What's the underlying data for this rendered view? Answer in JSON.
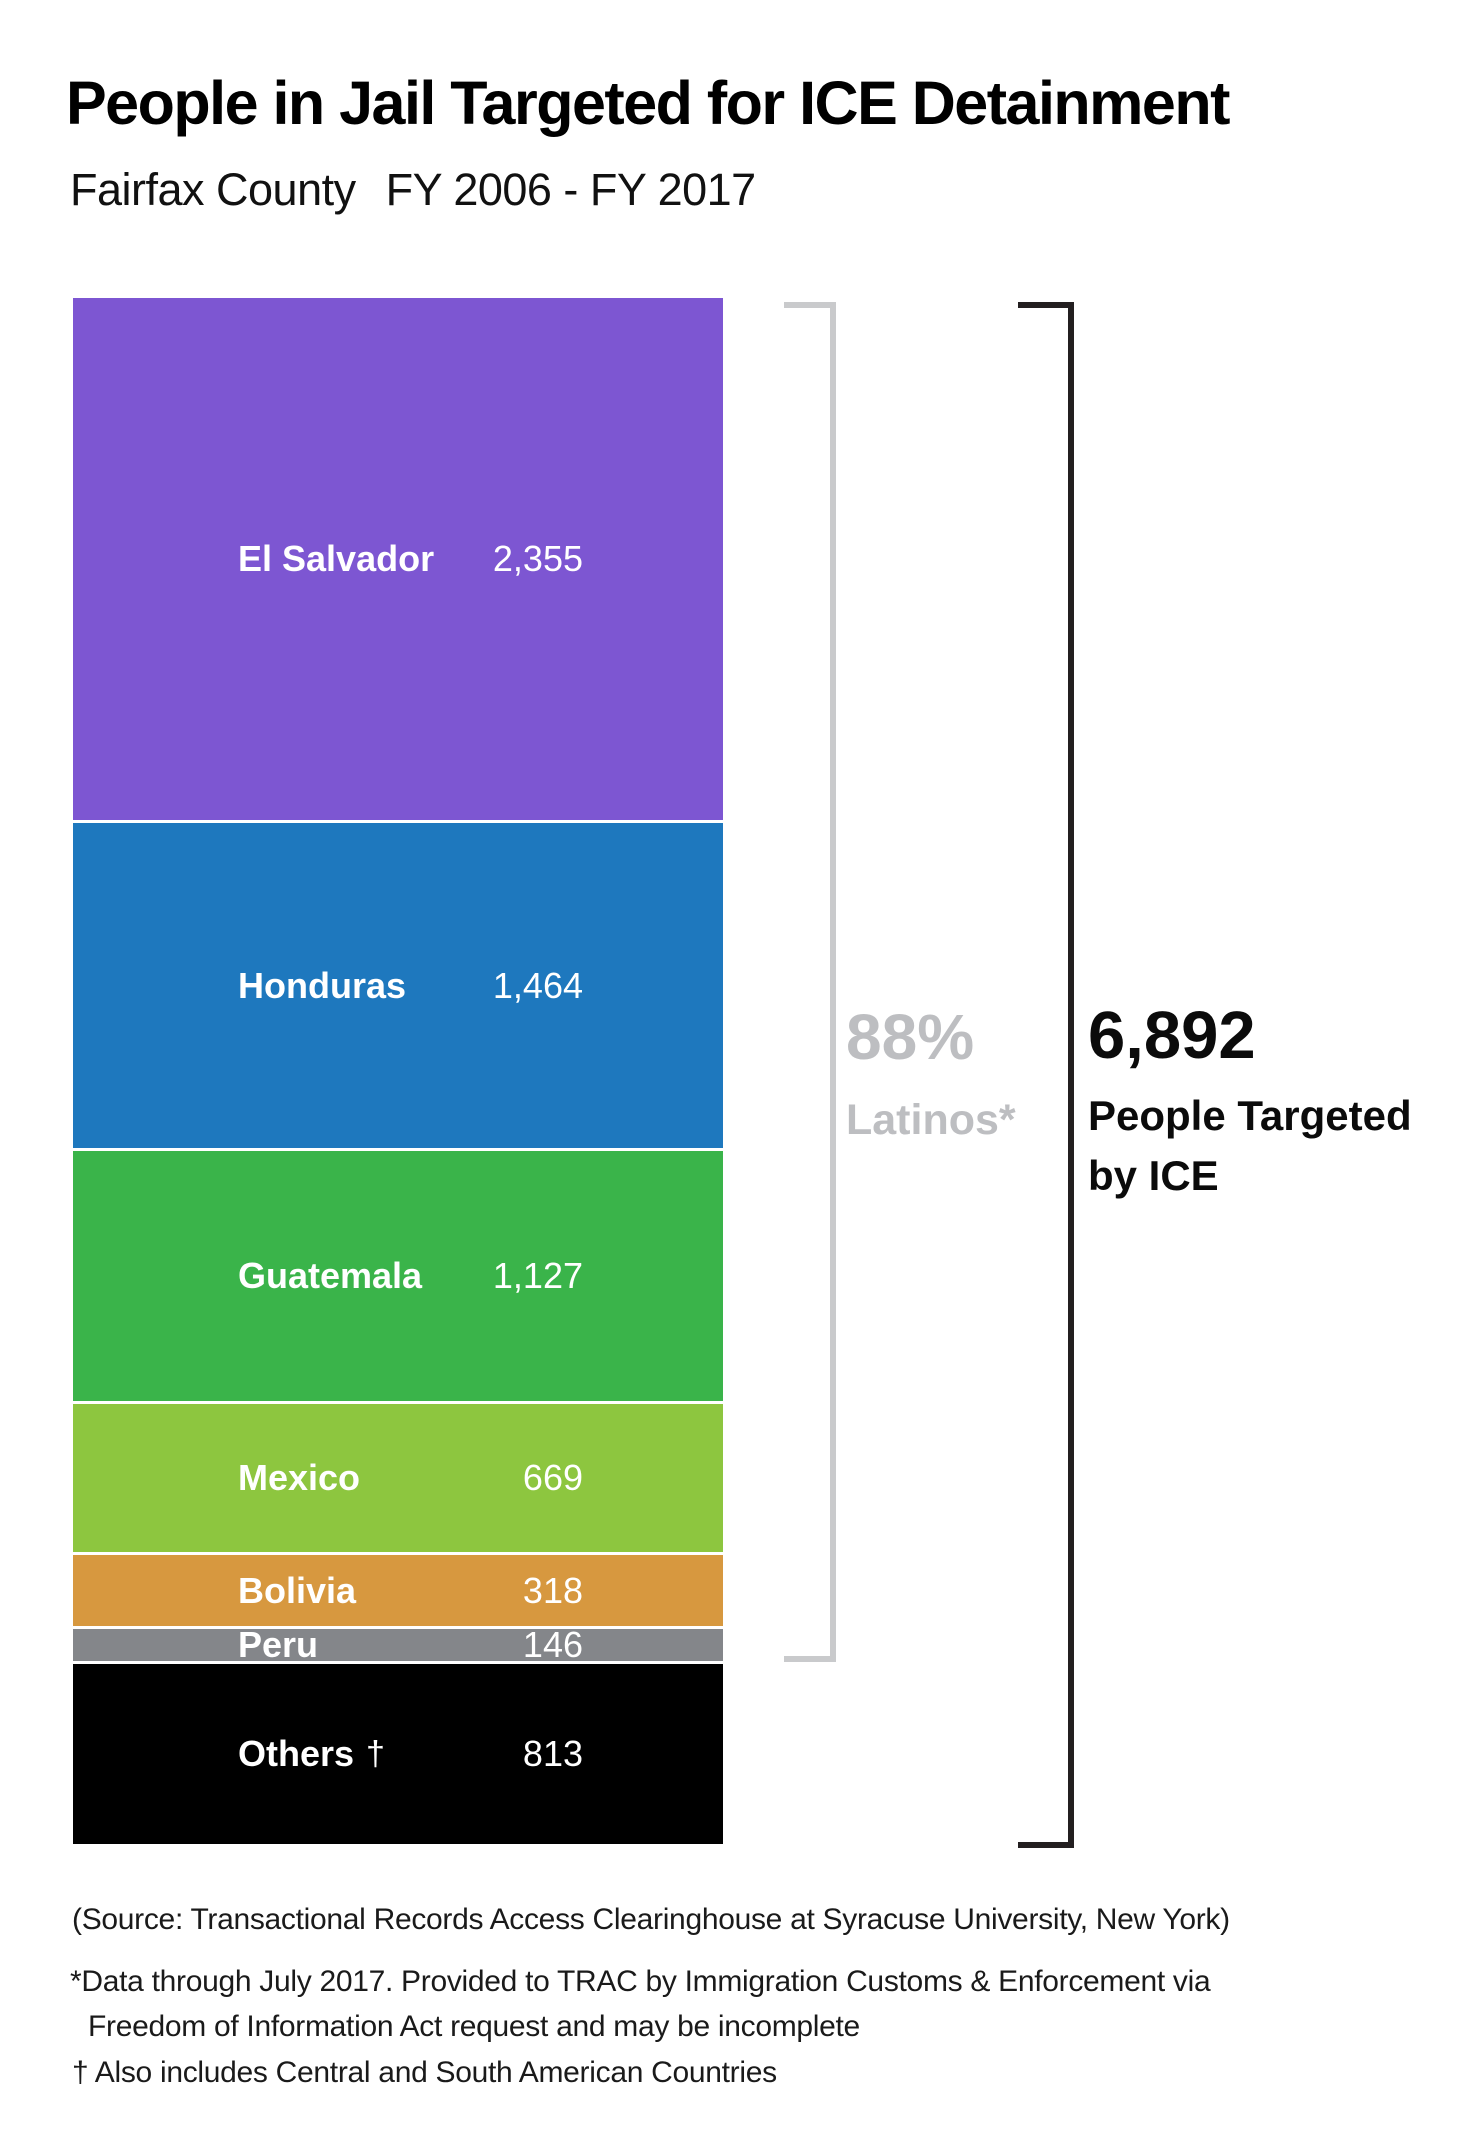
{
  "header": {
    "title": "People in Jail  Targeted for ICE Detainment",
    "subtitle_location": "Fairfax County",
    "subtitle_period": "FY 2006 -  FY 2017"
  },
  "chart_data": {
    "type": "bar",
    "stacked": true,
    "orientation": "vertical-stack",
    "title": "People in Jail  Targeted for ICE Detainment",
    "subtitle": "Fairfax County FY 2006 - FY 2017",
    "categories": [
      "El Salvador",
      "Honduras",
      "Guatemala",
      "Mexico",
      "Bolivia",
      "Peru",
      "Others †"
    ],
    "values": [
      2355,
      1464,
      1127,
      669,
      318,
      146,
      813
    ],
    "total": 6892,
    "colors": [
      "#7D56D2",
      "#1E78BE",
      "#3AB44A",
      "#8DC63F",
      "#D7983F",
      "#84868A",
      "#000000"
    ],
    "legend_position": "none",
    "grid": false,
    "annotations": {
      "latino_percent": "88%",
      "latino_label": "Latinos*",
      "total_display": "6,892",
      "total_caption": "People Targeted by ICE"
    }
  },
  "segments": [
    {
      "name": "El Salvador",
      "suffix": "",
      "value": 2355,
      "display_value": "2,355",
      "color": "#7D56D2"
    },
    {
      "name": "Honduras",
      "suffix": "",
      "value": 1464,
      "display_value": "1,464",
      "color": "#1E78BE"
    },
    {
      "name": "Guatemala",
      "suffix": "",
      "value": 1127,
      "display_value": "1,127",
      "color": "#3AB44A"
    },
    {
      "name": "Mexico",
      "suffix": "",
      "value": 669,
      "display_value": "669",
      "color": "#8DC63F"
    },
    {
      "name": "Bolivia",
      "suffix": "",
      "value": 318,
      "display_value": "318",
      "color": "#D7983F"
    },
    {
      "name": "Peru",
      "suffix": "",
      "value": 146,
      "display_value": "146",
      "color": "#84868A"
    },
    {
      "name": "Others",
      "suffix": "†",
      "value": 813,
      "display_value": "813",
      "color": "#000000"
    }
  ],
  "callouts": {
    "percent": "88%",
    "percent_label": "Latinos*",
    "total": "6,892",
    "total_line1": "People Targeted",
    "total_line2": "by ICE"
  },
  "footnotes": {
    "source": "(Source: Transactional Records Access Clearinghouse at Syracuse University, New York)",
    "data_note_line1": "*Data through July 2017. Provided to TRAC by Immigration Customs & Enforcement via",
    "data_note_line2": "Freedom of Information Act request and may be incomplete",
    "dagger_note": "† Also includes Central and South American Countries"
  },
  "style": {
    "bracket_gray": "#c9cacc",
    "bracket_black": "#231f20",
    "percent_text_gray": "#bdbec1",
    "background": "#ffffff"
  }
}
